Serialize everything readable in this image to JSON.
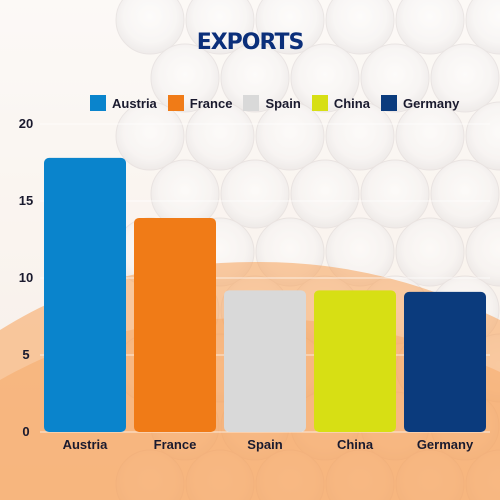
{
  "chart_data": {
    "type": "bar",
    "title": "EXPORTS",
    "categories": [
      "Austria",
      "France",
      "Spain",
      "China",
      "Germany"
    ],
    "values": [
      17.8,
      13.9,
      9.2,
      9.2,
      9.1
    ],
    "colors": [
      "#0a84cc",
      "#f07b17",
      "#d9d9d9",
      "#d7df14",
      "#0b3b7d"
    ],
    "legend": [
      "Austria",
      "France",
      "Spain",
      "China",
      "Germany"
    ],
    "legend_position": "top",
    "yticks": [
      "0",
      "5",
      "10",
      "15",
      "20"
    ],
    "ylim": [
      0,
      20
    ],
    "xlabel": "",
    "ylabel": "",
    "grid": true
  }
}
